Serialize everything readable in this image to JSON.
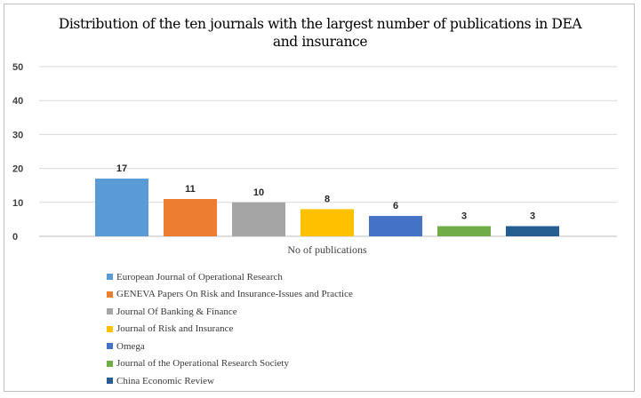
{
  "chart_data": {
    "type": "bar",
    "title": "Distribution of the ten journals with the largest number of publications in DEA and insurance",
    "title_lines": [
      "Distribution of the ten journals with the largest number of publications in DEA",
      "and insurance"
    ],
    "xlabel": "No of publications",
    "ylabel": "",
    "ylim": [
      0,
      50
    ],
    "yticks": [
      "0",
      "10",
      "20",
      "30",
      "40",
      "50"
    ],
    "grid": true,
    "legend_position": "bottom",
    "categories": [
      "No of publications"
    ],
    "series": [
      {
        "name": "European Journal of Operational Research",
        "value": 17,
        "label": "17",
        "color": "#5b9bd5"
      },
      {
        "name": "GENEVA Papers On Risk and Insurance-Issues and Practice",
        "value": 11,
        "label": "11",
        "color": "#ed7d31"
      },
      {
        "name": "Journal Of Banking & Finance",
        "value": 10,
        "label": "10",
        "color": "#a5a5a5"
      },
      {
        "name": "Journal of Risk and Insurance",
        "value": 8,
        "label": "8",
        "color": "#ffc000"
      },
      {
        "name": "Omega",
        "value": 6,
        "label": "6",
        "color": "#4472c4"
      },
      {
        "name": "Journal of the Operational Research Society",
        "value": 3,
        "label": "3",
        "color": "#70ad47"
      },
      {
        "name": "China Economic Review",
        "value": 3,
        "label": "3",
        "color": "#255e91"
      }
    ]
  }
}
